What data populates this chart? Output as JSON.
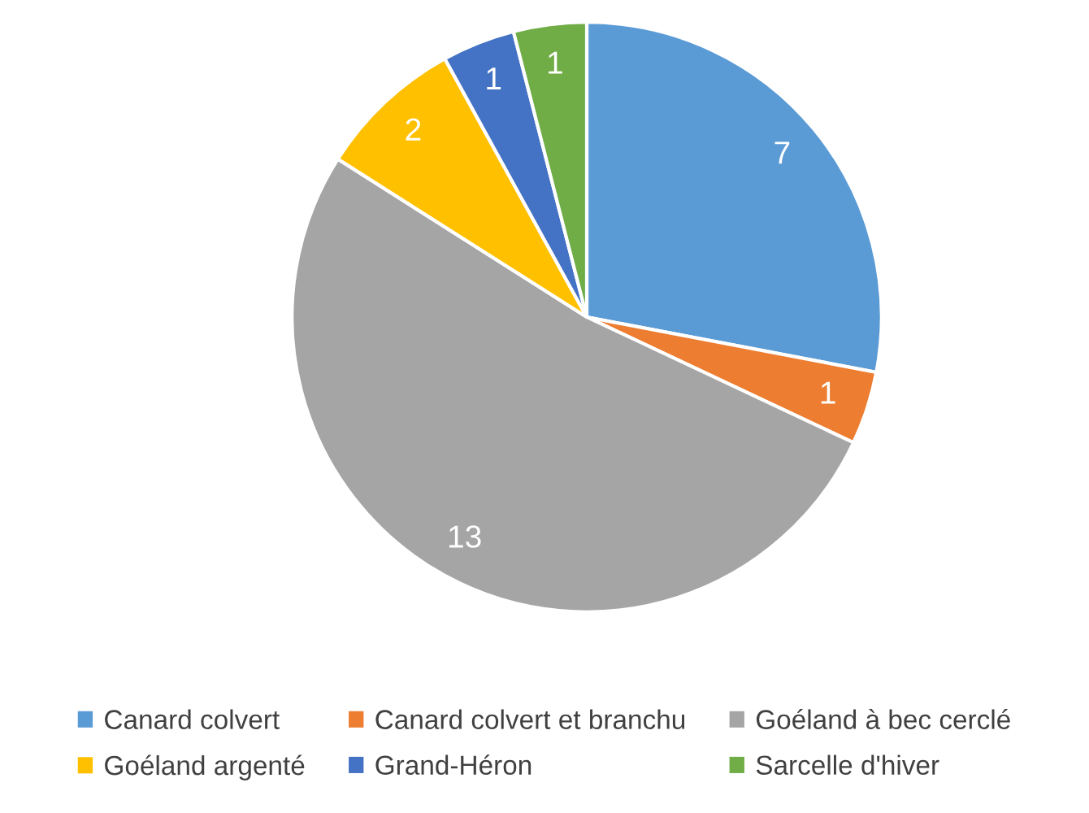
{
  "chart_data": {
    "type": "pie",
    "categories": [
      "Canard colvert",
      "Canard colvert et branchu",
      "Goéland à bec cerclé",
      "Goéland argenté",
      "Grand-Héron",
      "Sarcelle d'hiver"
    ],
    "values": [
      7,
      1,
      13,
      2,
      1,
      1
    ],
    "colors": [
      "#5b9bd5",
      "#ed7d31",
      "#a5a5a5",
      "#ffc000",
      "#4472c4",
      "#70ad47"
    ],
    "data_labels": true,
    "legend": "bottom"
  }
}
